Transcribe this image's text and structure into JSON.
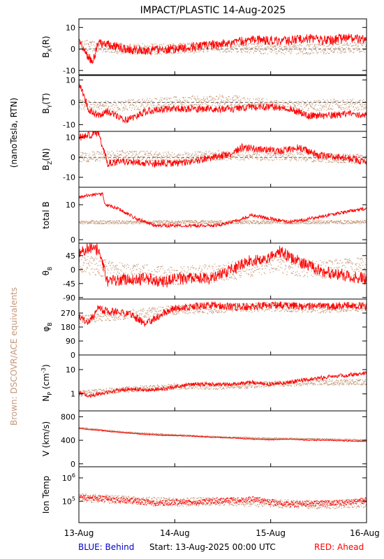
{
  "title": "IMPACT/PLASTIC   14-Aug-2025",
  "side_labels": {
    "units": "(nanoTesla, RTN)",
    "brown_note": "Brown: DSCOVR/ACE equivalents"
  },
  "footer": {
    "blue": "BLUE: Behind",
    "start": "Start: 13-Aug-2025 00:00 UTC",
    "red": "RED: Ahead"
  },
  "colors": {
    "ahead": "#ff0000",
    "equivalent": "#c49a7c",
    "behind": "#0000cc",
    "axes": "#000000"
  },
  "chart_data": [
    {
      "type": "line",
      "ylabel": "B_X(R)",
      "ylim": [
        -12,
        14
      ],
      "yticks": [
        -10,
        0,
        10
      ],
      "zero_line": true,
      "x_range_days": [
        0,
        3
      ],
      "xtick_labels": [
        "13-Aug",
        "14-Aug",
        "15-Aug",
        "16-Aug"
      ],
      "series": [
        {
          "name": "RED: Ahead",
          "color": "#ff0000",
          "style": "line",
          "noise": 2.2,
          "x": [
            0,
            0.05,
            0.1,
            0.15,
            0.2,
            0.3,
            0.5,
            0.7,
            0.9,
            1.0,
            1.2,
            1.4,
            1.6,
            1.8,
            2.0,
            2.2,
            2.4,
            2.6,
            2.8,
            3.0
          ],
          "y": [
            3,
            1,
            -4,
            -6,
            3,
            2,
            0,
            -1,
            0,
            0,
            1,
            2,
            3,
            4,
            4,
            4,
            5,
            4,
            5,
            5
          ]
        },
        {
          "name": "Brown: DSCOVR/ACE equivalents",
          "color": "#c49a7c",
          "style": "dots",
          "noise": 2.5,
          "x": [
            0,
            0.2,
            0.5,
            1.0,
            1.5,
            2.0,
            2.5,
            3.0
          ],
          "y": [
            2,
            1,
            0,
            0,
            1,
            0,
            0,
            1
          ]
        }
      ]
    },
    {
      "type": "line",
      "ylabel": "B_Y(T)",
      "ylim": [
        -13,
        12
      ],
      "yticks": [
        -10,
        0,
        10
      ],
      "zero_line": true,
      "x_range_days": [
        0,
        3
      ],
      "xtick_labels": [
        "13-Aug",
        "14-Aug",
        "15-Aug",
        "16-Aug"
      ],
      "series": [
        {
          "name": "RED: Ahead",
          "color": "#ff0000",
          "style": "line",
          "noise": 1.6,
          "x": [
            0,
            0.05,
            0.1,
            0.2,
            0.3,
            0.5,
            0.7,
            0.9,
            1.0,
            1.2,
            1.4,
            1.6,
            1.8,
            2.0,
            2.2,
            2.4,
            2.6,
            2.8,
            3.0
          ],
          "y": [
            9,
            3,
            -3,
            -6,
            -4,
            -8,
            -4,
            -3,
            -3,
            -3,
            -3,
            -3,
            -2,
            -2,
            -3,
            -6,
            -6,
            -5,
            -6
          ]
        },
        {
          "name": "Brown: DSCOVR/ACE equivalents",
          "color": "#c49a7c",
          "style": "dots",
          "noise": 2.5,
          "x": [
            0,
            0.3,
            0.6,
            1.0,
            1.5,
            2.0,
            2.3,
            2.6,
            3.0
          ],
          "y": [
            -1,
            -2,
            -1,
            0,
            1,
            -1,
            -2,
            -1,
            -1
          ]
        }
      ]
    },
    {
      "type": "line",
      "ylabel": "B_Z(N)",
      "ylim": [
        -15,
        13
      ],
      "yticks": [
        -10,
        0,
        10
      ],
      "zero_line": true,
      "x_range_days": [
        0,
        3
      ],
      "xtick_labels": [
        "13-Aug",
        "14-Aug",
        "15-Aug",
        "16-Aug"
      ],
      "series": [
        {
          "name": "RED: Ahead",
          "color": "#ff0000",
          "style": "line",
          "noise": 1.8,
          "x": [
            0,
            0.1,
            0.2,
            0.25,
            0.3,
            0.5,
            0.7,
            0.9,
            1.0,
            1.2,
            1.4,
            1.6,
            1.7,
            1.9,
            2.1,
            2.3,
            2.5,
            2.7,
            2.9,
            3.0
          ],
          "y": [
            10,
            11,
            12,
            5,
            -3,
            -2,
            -3,
            -3,
            -3,
            -2,
            0,
            2,
            5,
            4,
            3,
            5,
            1,
            0,
            -1,
            -3
          ]
        },
        {
          "name": "Brown: DSCOVR/ACE equivalents",
          "color": "#c49a7c",
          "style": "dots",
          "noise": 2.5,
          "x": [
            0,
            0.5,
            1.0,
            1.5,
            2.0,
            2.5,
            3.0
          ],
          "y": [
            0,
            1,
            0,
            1,
            1,
            0,
            -1
          ]
        }
      ]
    },
    {
      "type": "line",
      "ylabel": "total B",
      "ylim": [
        -1,
        15
      ],
      "yticks": [
        0,
        10
      ],
      "zero_line": false,
      "x_range_days": [
        0,
        3
      ],
      "xtick_labels": [
        "13-Aug",
        "14-Aug",
        "15-Aug",
        "16-Aug"
      ],
      "series": [
        {
          "name": "RED: Ahead",
          "color": "#ff0000",
          "style": "line",
          "noise": 0.5,
          "x": [
            0,
            0.15,
            0.25,
            0.27,
            0.4,
            0.6,
            0.8,
            1.0,
            1.2,
            1.4,
            1.6,
            1.8,
            2.0,
            2.2,
            2.4,
            2.6,
            2.8,
            3.0
          ],
          "y": [
            12,
            13,
            13,
            10,
            9,
            6,
            4,
            4,
            4,
            4,
            5,
            7,
            6,
            5,
            6,
            7,
            8,
            9
          ]
        },
        {
          "name": "Brown: DSCOVR/ACE equivalents",
          "color": "#c49a7c",
          "style": "dots",
          "noise": 0.5,
          "x": [
            0,
            0.5,
            1.0,
            1.5,
            2.0,
            2.5,
            3.0
          ],
          "y": [
            5,
            5,
            5,
            5,
            5,
            5,
            5
          ]
        }
      ]
    },
    {
      "type": "line",
      "ylabel": "θ_B",
      "ylim": [
        -95,
        85
      ],
      "yticks": [
        -90,
        -45,
        0,
        45
      ],
      "zero_line": false,
      "x_range_days": [
        0,
        3
      ],
      "xtick_labels": [
        "13-Aug",
        "14-Aug",
        "15-Aug",
        "16-Aug"
      ],
      "series": [
        {
          "name": "RED: Ahead",
          "color": "#ff0000",
          "style": "line",
          "noise": 20,
          "x": [
            0,
            0.1,
            0.2,
            0.25,
            0.3,
            0.5,
            0.7,
            0.9,
            1.0,
            1.2,
            1.4,
            1.6,
            1.8,
            2.0,
            2.1,
            2.2,
            2.4,
            2.6,
            2.8,
            3.0
          ],
          "y": [
            60,
            70,
            65,
            10,
            -40,
            -30,
            -30,
            -40,
            -30,
            -30,
            -30,
            0,
            30,
            40,
            60,
            40,
            10,
            -10,
            -20,
            -30
          ]
        },
        {
          "name": "Brown: DSCOVR/ACE equivalents",
          "color": "#c49a7c",
          "style": "dots",
          "noise": 30,
          "x": [
            0,
            0.5,
            1.0,
            1.5,
            2.0,
            2.5,
            3.0
          ],
          "y": [
            20,
            -10,
            -20,
            -10,
            20,
            0,
            10
          ]
        }
      ]
    },
    {
      "type": "line",
      "ylabel": "φ_B",
      "ylim": [
        0,
        360
      ],
      "yticks": [
        0,
        90,
        180,
        270
      ],
      "zero_line": false,
      "x_range_days": [
        0,
        3
      ],
      "xtick_labels": [
        "13-Aug",
        "14-Aug",
        "15-Aug",
        "16-Aug"
      ],
      "series": [
        {
          "name": "RED: Ahead",
          "color": "#ff0000",
          "style": "line",
          "noise": 25,
          "x": [
            0,
            0.1,
            0.2,
            0.3,
            0.5,
            0.7,
            0.9,
            1.0,
            1.2,
            1.4,
            1.6,
            1.8,
            2.0,
            2.2,
            2.4,
            2.6,
            2.8,
            3.0
          ],
          "y": [
            250,
            200,
            300,
            280,
            270,
            200,
            280,
            300,
            310,
            320,
            310,
            310,
            320,
            320,
            315,
            310,
            320,
            315
          ]
        },
        {
          "name": "Brown: DSCOVR/ACE equivalents",
          "color": "#c49a7c",
          "style": "dots",
          "noise": 30,
          "x": [
            0,
            0.5,
            1.0,
            1.5,
            2.0,
            2.5,
            3.0
          ],
          "y": [
            230,
            260,
            290,
            300,
            310,
            300,
            310
          ]
        }
      ]
    },
    {
      "type": "line",
      "ylabel": "N_P (cm^-3)",
      "ylog": true,
      "ylim": [
        0.2,
        40
      ],
      "yticks": [
        1,
        10
      ],
      "zero_line": false,
      "x_range_days": [
        0,
        3
      ],
      "xtick_labels": [
        "13-Aug",
        "14-Aug",
        "15-Aug",
        "16-Aug"
      ],
      "series": [
        {
          "name": "RED: Ahead",
          "color": "#ff0000",
          "style": "line",
          "noise": 0.08,
          "x": [
            0,
            0.1,
            0.2,
            0.3,
            0.5,
            0.7,
            0.9,
            1.0,
            1.2,
            1.4,
            1.6,
            1.8,
            2.0,
            2.2,
            2.4,
            2.6,
            2.8,
            3.0
          ],
          "y": [
            1.2,
            0.8,
            1,
            1.2,
            1.5,
            1.5,
            1.6,
            2,
            2.5,
            2.5,
            2.5,
            3,
            2.5,
            3,
            4,
            5,
            6,
            7
          ]
        },
        {
          "name": "Brown: DSCOVR/ACE equivalents",
          "color": "#c49a7c",
          "style": "dots",
          "noise": 0.12,
          "x": [
            0,
            0.5,
            1.0,
            1.5,
            2.0,
            2.5,
            3.0
          ],
          "y": [
            1,
            1.5,
            2,
            2,
            2.5,
            3,
            3
          ]
        }
      ]
    },
    {
      "type": "line",
      "ylabel": "V (km/s)",
      "ylim": [
        -50,
        900
      ],
      "yticks": [
        0,
        400,
        800
      ],
      "zero_line": false,
      "x_range_days": [
        0,
        3
      ],
      "xtick_labels": [
        "13-Aug",
        "14-Aug",
        "15-Aug",
        "16-Aug"
      ],
      "series": [
        {
          "name": "RED: Ahead",
          "color": "#ff0000",
          "style": "line",
          "noise": 8,
          "x": [
            0,
            0.2,
            0.4,
            0.6,
            0.8,
            1.0,
            1.2,
            1.4,
            1.6,
            1.8,
            2.0,
            2.2,
            2.4,
            2.6,
            2.8,
            3.0
          ],
          "y": [
            600,
            570,
            540,
            510,
            490,
            480,
            470,
            450,
            440,
            420,
            410,
            420,
            400,
            400,
            390,
            380
          ]
        },
        {
          "name": "Brown: DSCOVR/ACE equivalents",
          "color": "#c49a7c",
          "style": "dots",
          "noise": 12,
          "x": [
            0,
            0.5,
            1.0,
            1.5,
            2.0,
            2.5,
            3.0
          ],
          "y": [
            610,
            530,
            490,
            450,
            430,
            420,
            400
          ]
        }
      ]
    },
    {
      "type": "line",
      "ylabel": "Ion Temp",
      "ylog": true,
      "ylim": [
        12000,
        3000000
      ],
      "yticks": [
        100000,
        1000000
      ],
      "ytick_labels": [
        "10^5",
        "10^6"
      ],
      "zero_line": false,
      "x_range_days": [
        0,
        3
      ],
      "xtick_labels": [
        "13-Aug",
        "14-Aug",
        "15-Aug",
        "16-Aug"
      ],
      "series": [
        {
          "name": "RED: Ahead",
          "color": "#ff0000",
          "style": "dots",
          "noise": 0.12,
          "x": [
            0,
            0.2,
            0.4,
            0.6,
            0.8,
            1.0,
            1.2,
            1.4,
            1.6,
            1.8,
            2.0,
            2.2,
            2.4,
            2.6,
            2.8,
            3.0
          ],
          "y": [
            150000,
            130000,
            110000,
            100000,
            80000,
            90000,
            90000,
            100000,
            110000,
            120000,
            90000,
            70000,
            80000,
            80000,
            90000,
            110000
          ]
        },
        {
          "name": "Brown: DSCOVR/ACE equivalents",
          "color": "#c49a7c",
          "style": "dots",
          "noise": 0.18,
          "x": [
            0,
            0.5,
            1.0,
            1.5,
            2.0,
            2.5,
            3.0
          ],
          "y": [
            140000,
            110000,
            90000,
            100000,
            80000,
            70000,
            80000
          ]
        }
      ]
    }
  ]
}
